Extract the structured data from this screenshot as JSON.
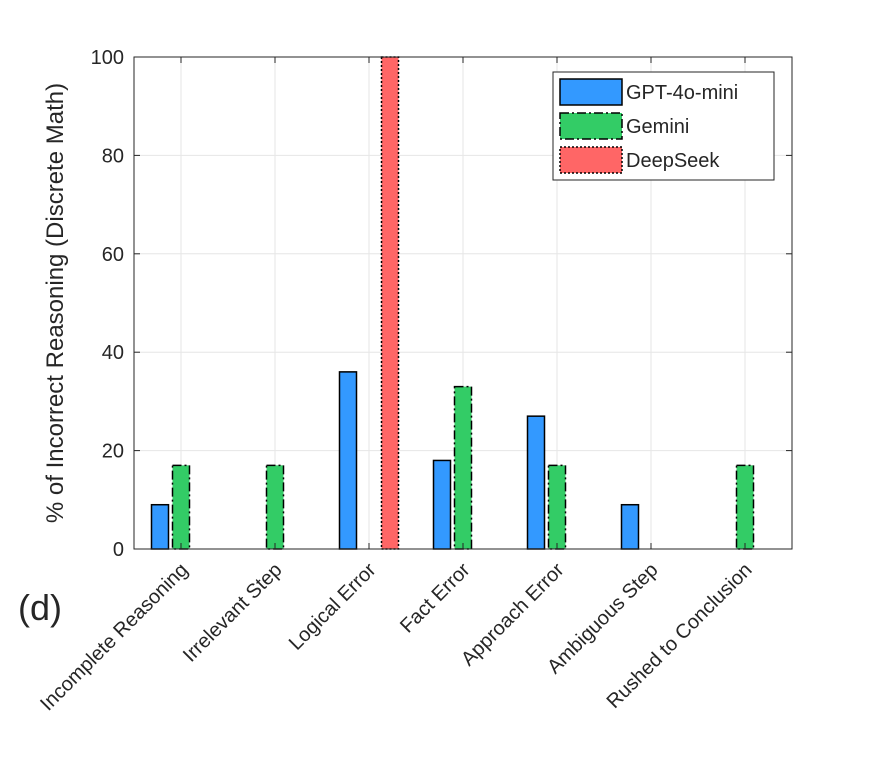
{
  "panel_label": "(d)",
  "chart_data": {
    "type": "bar",
    "title": "",
    "xlabel": "",
    "ylabel": "% of Incorrect Reasoning (Discrete Math)",
    "ylim": [
      0,
      100
    ],
    "yticks": [
      0,
      20,
      40,
      60,
      80,
      100
    ],
    "grid": true,
    "legend_position": "top-right",
    "categories": [
      "Incomplete Reasoning",
      "Irrelevant Step",
      "Logical Error",
      "Fact Error",
      "Approach Error",
      "Ambiguous Step",
      "Rushed to Conclusion"
    ],
    "series": [
      {
        "name": "GPT-4o-mini",
        "color": "#3399ff",
        "line_style": "solid",
        "values": [
          9,
          0,
          36,
          18,
          27,
          9,
          0
        ]
      },
      {
        "name": "Gemini",
        "color": "#33cc66",
        "line_style": "dash-dot",
        "values": [
          17,
          17,
          0,
          33,
          17,
          0,
          17
        ]
      },
      {
        "name": "DeepSeek",
        "color": "#ff6666",
        "line_style": "dotted",
        "values": [
          0,
          0,
          100,
          0,
          0,
          0,
          0
        ]
      }
    ]
  }
}
